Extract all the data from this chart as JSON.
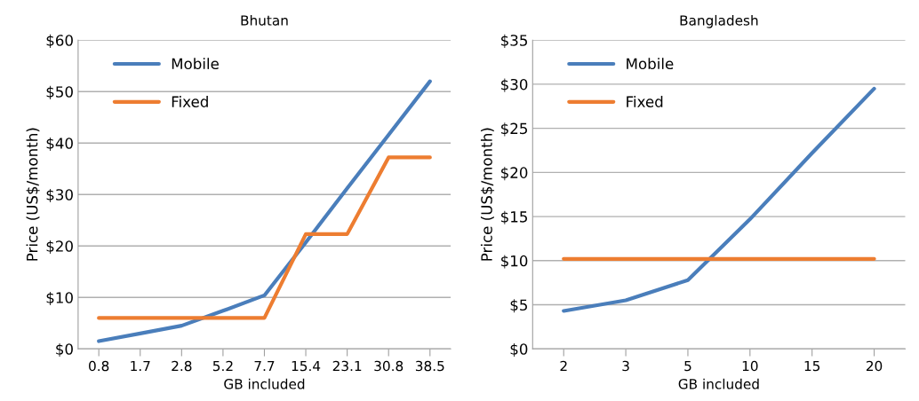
{
  "chart_data": [
    {
      "type": "line",
      "title": "Bhutan",
      "xlabel": "GB included",
      "ylabel": "Price (US$/month)",
      "categories": [
        "0.8",
        "1.7",
        "2.8",
        "5.2",
        "7.7",
        "15.4",
        "23.1",
        "30.8",
        "38.5"
      ],
      "series": [
        {
          "name": "Mobile",
          "color": "#4a7ebb",
          "values": [
            1.5,
            3.0,
            4.5,
            7.4,
            10.4,
            20.7,
            31.2,
            41.6,
            52.0
          ]
        },
        {
          "name": "Fixed",
          "color": "#ed7d31",
          "values": [
            6.0,
            6.0,
            6.0,
            6.0,
            6.0,
            22.3,
            22.3,
            37.2,
            37.2
          ]
        }
      ],
      "ylim": [
        0,
        60
      ],
      "yticks": [
        {
          "value": 0,
          "label": "$0"
        },
        {
          "value": 10,
          "label": "$10"
        },
        {
          "value": 20,
          "label": "$20"
        },
        {
          "value": 30,
          "label": "$30"
        },
        {
          "value": 40,
          "label": "$40"
        },
        {
          "value": 50,
          "label": "$50"
        },
        {
          "value": 60,
          "label": "$60"
        }
      ],
      "grid": "y",
      "legend": "top left"
    },
    {
      "type": "line",
      "title": "Bangladesh",
      "xlabel": "GB included",
      "ylabel": "Price (US$/month)",
      "categories": [
        "2",
        "3",
        "5",
        "10",
        "15",
        "20"
      ],
      "series": [
        {
          "name": "Mobile",
          "color": "#4a7ebb",
          "values": [
            4.3,
            5.5,
            7.8,
            14.7,
            22.2,
            29.5
          ]
        },
        {
          "name": "Fixed",
          "color": "#ed7d31",
          "values": [
            10.2,
            10.2,
            10.2,
            10.2,
            10.2,
            10.2
          ]
        }
      ],
      "ylim": [
        0,
        35
      ],
      "yticks": [
        {
          "value": 0,
          "label": "$0"
        },
        {
          "value": 5,
          "label": "$5"
        },
        {
          "value": 10,
          "label": "$10"
        },
        {
          "value": 15,
          "label": "$15"
        },
        {
          "value": 20,
          "label": "$20"
        },
        {
          "value": 25,
          "label": "$25"
        },
        {
          "value": 30,
          "label": "$30"
        },
        {
          "value": 35,
          "label": "$35"
        }
      ],
      "grid": "y",
      "legend": "top left"
    }
  ]
}
